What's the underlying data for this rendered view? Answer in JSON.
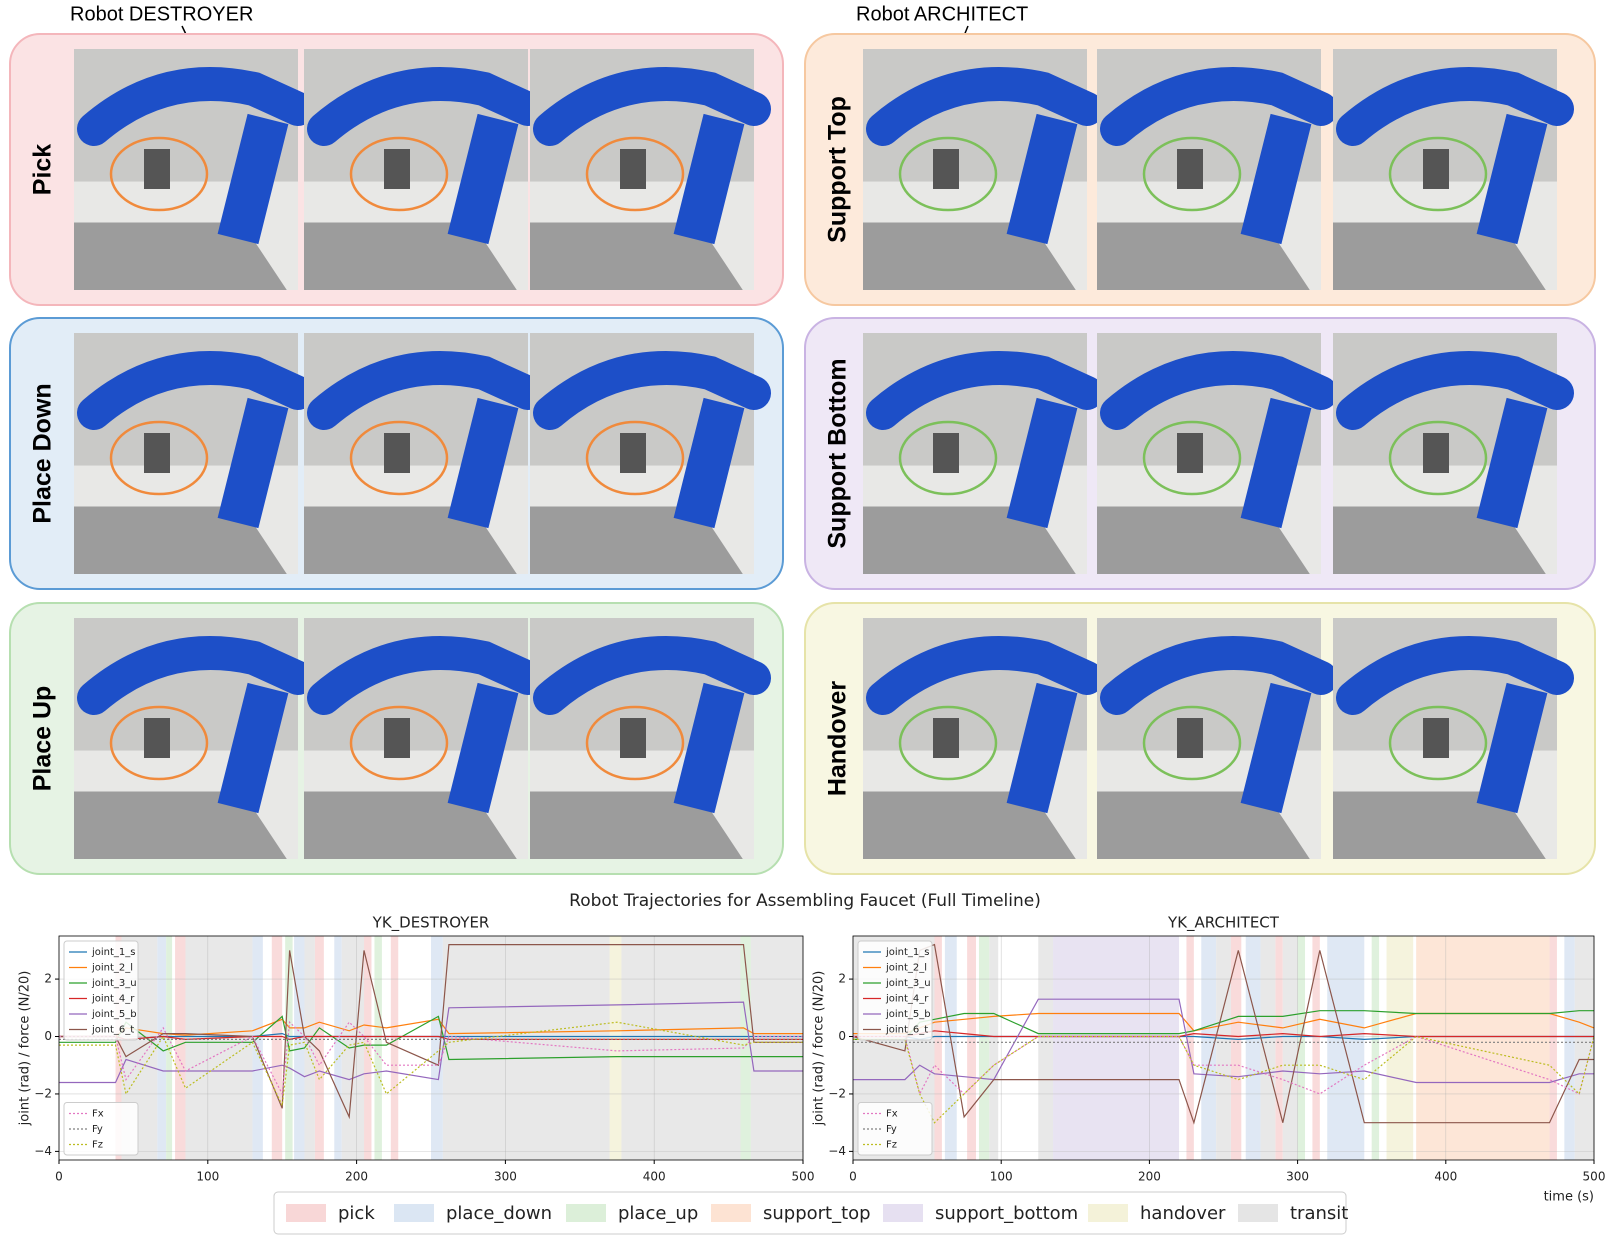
{
  "annotations": [
    "Robot DESTROYER",
    "Robot ARCHITECT"
  ],
  "panels": [
    {
      "label": "Pick",
      "color": "#fbe3e4",
      "border": "#f4b6bb",
      "ring": "#f08a3c"
    },
    {
      "label": "Support Top",
      "color": "#fdeadb",
      "border": "#f6c8a0",
      "ring": "#7cc05a"
    },
    {
      "label": "Place  Down",
      "color": "#e2edf7",
      "border": "#5b9bd5",
      "ring": "#f08a3c"
    },
    {
      "label": "Support Bottom",
      "color": "#efe8f6",
      "border": "#c9b3e3",
      "ring": "#7cc05a"
    },
    {
      "label": "Place  Up",
      "color": "#e6f3e4",
      "border": "#b6dfb0",
      "ring": "#f08a3c"
    },
    {
      "label": "Handover",
      "color": "#f8f7e2",
      "border": "#e6e3a8",
      "ring": "#7cc05a"
    }
  ],
  "figure_title": "Robot Trajectories for Assembling Faucet (Full Timeline)",
  "phase_legend": [
    {
      "name": "pick",
      "color": "#f8d7d7"
    },
    {
      "name": "place_down",
      "color": "#dbe6f3"
    },
    {
      "name": "place_up",
      "color": "#dcefd9"
    },
    {
      "name": "support_top",
      "color": "#fde3d3"
    },
    {
      "name": "support_bottom",
      "color": "#e6e0f1"
    },
    {
      "name": "handover",
      "color": "#f4f2d9"
    },
    {
      "name": "transit",
      "color": "#e5e5e5"
    }
  ],
  "chart_data": [
    {
      "type": "line",
      "title": "YK_DESTROYER",
      "ylabel": "joint (rad) / force (N/20)",
      "grid": true,
      "xlim": [
        0,
        500
      ],
      "ylim": [
        -4.3,
        3.5
      ],
      "xticks": [
        0,
        100,
        200,
        300,
        400,
        500
      ],
      "yticks": [
        {
          "value": -4,
          "label": "−4"
        },
        {
          "value": -2,
          "label": "−2"
        },
        0,
        2
      ],
      "x": [
        0,
        38,
        45,
        70,
        85,
        130,
        150,
        155,
        165,
        175,
        195,
        205,
        220,
        255,
        262,
        375,
        460,
        467,
        500
      ],
      "bands": [
        [
          [
            38,
            42
          ],
          [
            78,
            85
          ],
          [
            143,
            150
          ],
          [
            172,
            178
          ],
          [
            205,
            210
          ],
          [
            223,
            228
          ]
        ],
        [
          [
            66,
            72
          ],
          [
            130,
            137
          ],
          [
            158,
            165
          ],
          [
            185,
            190
          ],
          [
            250,
            258
          ]
        ],
        [
          [
            72,
            76
          ],
          [
            152,
            157
          ],
          [
            212,
            217
          ],
          [
            458,
            465
          ]
        ],
        [],
        [],
        [
          [
            370,
            378
          ]
        ],
        [
          [
            42,
            66
          ],
          [
            85,
            130
          ],
          [
            165,
            172
          ],
          [
            190,
            205
          ],
          [
            258,
            370
          ],
          [
            378,
            458
          ],
          [
            465,
            500
          ]
        ]
      ],
      "series": [
        {
          "name": "joint_1_s",
          "color": "#1f77b4",
          "style": "solid",
          "values": [
            0,
            0,
            -0.1,
            0,
            0,
            0,
            0.1,
            0,
            0,
            0,
            0,
            0,
            0,
            0,
            0,
            0,
            0,
            0,
            0
          ]
        },
        {
          "name": "joint_2_l",
          "color": "#ff7f0e",
          "style": "solid",
          "values": [
            0,
            0,
            0.3,
            0.1,
            0.05,
            0.2,
            0.6,
            0.3,
            0.3,
            0.5,
            0.2,
            0.4,
            0.3,
            0.6,
            0.1,
            0.2,
            0.3,
            0.1,
            0.1
          ]
        },
        {
          "name": "joint_3_u",
          "color": "#2ca02c",
          "style": "solid",
          "values": [
            -0.2,
            -0.2,
            0.5,
            -0.5,
            -0.2,
            -0.2,
            0.7,
            -0.5,
            -0.4,
            0.3,
            -0.4,
            -0.3,
            -0.3,
            0.7,
            -0.8,
            -0.7,
            -0.7,
            -0.7,
            -0.7
          ]
        },
        {
          "name": "joint_4_r",
          "color": "#d62728",
          "style": "solid",
          "values": [
            0,
            0,
            -0.1,
            0,
            -0.1,
            0,
            0,
            -0.1,
            0,
            0,
            0,
            0,
            0,
            0,
            -0.1,
            -0.1,
            -0.1,
            -0.1,
            -0.1
          ]
        },
        {
          "name": "joint_5_b",
          "color": "#9467bd",
          "style": "solid",
          "values": [
            -1.6,
            -1.6,
            -0.8,
            -1.2,
            -1.2,
            -1.2,
            -1.0,
            -1.1,
            -1.4,
            -1.2,
            -1.5,
            -1.3,
            -1.2,
            -1.5,
            1.0,
            1.1,
            1.2,
            -1.2,
            -1.2
          ]
        },
        {
          "name": "joint_6_t",
          "color": "#8c564b",
          "style": "solid",
          "values": [
            0,
            0,
            -0.7,
            0.1,
            0.1,
            0,
            -2.5,
            3.0,
            0,
            -0.5,
            -2.8,
            3.0,
            -0.2,
            -1.0,
            3.2,
            3.2,
            3.2,
            -0.2,
            -0.2
          ]
        },
        {
          "name": "Fx",
          "color": "#e377c2",
          "style": "dotted",
          "values": [
            0,
            0,
            -1.5,
            0.3,
            -1.2,
            0,
            -2,
            0.5,
            0,
            -1,
            0.5,
            0,
            -1,
            -1,
            0,
            -0.5,
            -0.4,
            0,
            0
          ]
        },
        {
          "name": "Fy",
          "color": "#7f7f7f",
          "style": "dotted",
          "values": [
            -0.1,
            -0.1,
            -0.1,
            -0.1,
            -0.1,
            -0.1,
            -0.1,
            -0.1,
            -0.1,
            -0.1,
            -0.1,
            -0.1,
            -0.1,
            -0.1,
            -0.1,
            -0.1,
            -0.1,
            -0.1,
            -0.1
          ]
        },
        {
          "name": "Fz",
          "color": "#bcbd22",
          "style": "dotted",
          "values": [
            -0.3,
            -0.3,
            -2,
            0,
            -1.8,
            -0.2,
            -2.4,
            -0.3,
            -0.2,
            -1.5,
            -0.3,
            -0.2,
            -2,
            -0.5,
            -0.2,
            0.5,
            -0.3,
            -0.2,
            -0.2
          ]
        }
      ]
    },
    {
      "type": "line",
      "title": "YK_ARCHITECT",
      "ylabel": "joint (rad) / force (N/20)",
      "xlabel": "time (s)",
      "grid": true,
      "xlim": [
        0,
        500
      ],
      "ylim": [
        -4.3,
        3.5
      ],
      "xticks": [
        0,
        100,
        200,
        300,
        400,
        500
      ],
      "yticks": [
        {
          "value": -4,
          "label": "−4"
        },
        {
          "value": -2,
          "label": "−2"
        },
        0,
        2
      ],
      "x": [
        0,
        35,
        45,
        55,
        75,
        95,
        125,
        165,
        170,
        220,
        230,
        260,
        290,
        315,
        345,
        380,
        470,
        490,
        500
      ],
      "bands": [
        [
          [
            55,
            60
          ],
          [
            77,
            83
          ],
          [
            225,
            230
          ],
          [
            255,
            262
          ],
          [
            285,
            290
          ],
          [
            310,
            315
          ],
          [
            470,
            475
          ]
        ],
        [
          [
            62,
            70
          ],
          [
            235,
            245
          ],
          [
            265,
            275
          ],
          [
            320,
            345
          ],
          [
            480,
            487
          ]
        ],
        [
          [
            85,
            92
          ],
          [
            300,
            305
          ],
          [
            350,
            355
          ]
        ],
        [
          [
            380,
            470
          ]
        ],
        [
          [
            135,
            220
          ]
        ],
        [
          [
            360,
            378
          ]
        ],
        [
          [
            0,
            55
          ],
          [
            92,
            98
          ],
          [
            125,
            135
          ],
          [
            245,
            255
          ],
          [
            275,
            285
          ],
          [
            290,
            300
          ],
          [
            487,
            500
          ]
        ]
      ],
      "series": [
        {
          "name": "joint_1_s",
          "color": "#1f77b4",
          "style": "solid",
          "values": [
            0,
            0,
            -0.1,
            0,
            0,
            0,
            0,
            0,
            0,
            0,
            0,
            -0.1,
            0,
            0,
            -0.1,
            0,
            0,
            0,
            0
          ]
        },
        {
          "name": "joint_2_l",
          "color": "#ff7f0e",
          "style": "solid",
          "values": [
            0.1,
            0.1,
            0.3,
            0.5,
            0.6,
            0.7,
            0.8,
            0.8,
            0.8,
            0.8,
            0.2,
            0.5,
            0.3,
            0.6,
            0.3,
            0.8,
            0.8,
            0.5,
            0.3
          ]
        },
        {
          "name": "joint_3_u",
          "color": "#2ca02c",
          "style": "solid",
          "values": [
            -0.1,
            -0.1,
            0.5,
            0.6,
            0.8,
            0.8,
            0.1,
            0.1,
            0.1,
            0.1,
            0.2,
            0.7,
            0.7,
            0.9,
            0.9,
            0.8,
            0.8,
            0.9,
            0.9
          ]
        },
        {
          "name": "joint_4_r",
          "color": "#d62728",
          "style": "solid",
          "values": [
            0,
            0,
            0.1,
            0.2,
            0.1,
            0,
            0,
            0,
            0,
            0,
            0.1,
            0,
            0.1,
            0,
            0.1,
            0,
            0,
            0,
            0
          ]
        },
        {
          "name": "joint_5_b",
          "color": "#9467bd",
          "style": "solid",
          "values": [
            -1.5,
            -1.5,
            -1.0,
            -1.3,
            -1.4,
            -1.5,
            1.3,
            1.3,
            1.3,
            1.3,
            -1.3,
            -1.4,
            -1.2,
            -1.3,
            -1.2,
            -1.6,
            -1.6,
            -1.3,
            -1.3
          ]
        },
        {
          "name": "joint_6_t",
          "color": "#8c564b",
          "style": "solid",
          "values": [
            0,
            -0.5,
            3.0,
            3.2,
            -2.8,
            -1.5,
            -1.5,
            -1.5,
            -1.5,
            -1.5,
            -3.0,
            3.0,
            -3.0,
            3.0,
            -3.0,
            -3.0,
            -3.0,
            -0.8,
            -0.8
          ]
        },
        {
          "name": "Fx",
          "color": "#e377c2",
          "style": "dotted",
          "values": [
            0,
            0,
            -2,
            -1,
            -2,
            -1,
            0,
            0,
            0,
            0,
            -1,
            -1,
            -1.5,
            -2,
            -1,
            0,
            -1.5,
            -2,
            0
          ]
        },
        {
          "name": "Fy",
          "color": "#7f7f7f",
          "style": "dotted",
          "values": [
            -0.2,
            -0.2,
            -0.2,
            -0.2,
            -0.2,
            -0.2,
            -0.2,
            -0.2,
            -0.2,
            -0.2,
            -0.2,
            -0.2,
            -0.2,
            -0.2,
            -0.2,
            -0.2,
            -0.2,
            -0.2,
            -0.2
          ]
        },
        {
          "name": "Fz",
          "color": "#bcbd22",
          "style": "dotted",
          "values": [
            -0.1,
            -0.1,
            -2,
            -3,
            -2,
            -1,
            0,
            0,
            0,
            0,
            -1,
            -1.5,
            -1,
            -1,
            -1.5,
            0,
            -1,
            -2,
            0
          ]
        }
      ]
    }
  ]
}
